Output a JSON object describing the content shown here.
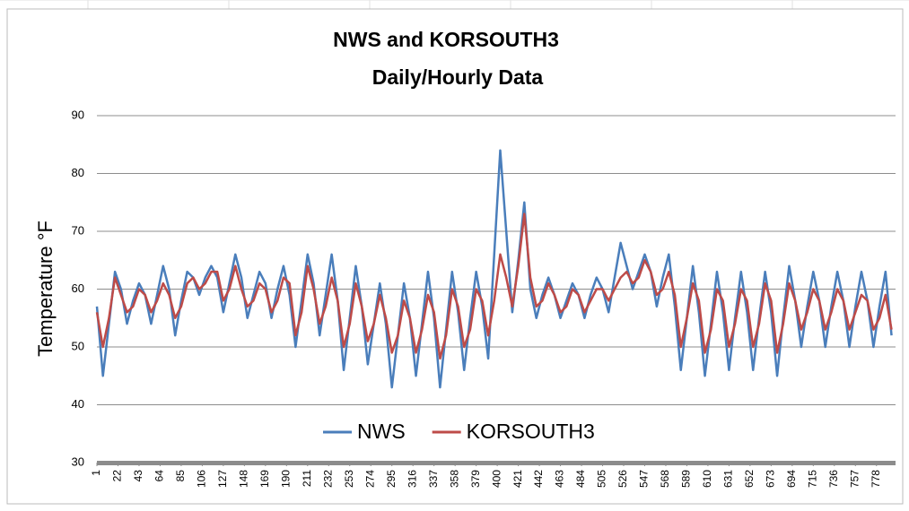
{
  "chart_data": {
    "type": "line",
    "title": "NWS and KORSOUTH3",
    "subtitle": "Daily/Hourly  Data",
    "y_label": "Temperature °F",
    "ylim": [
      30,
      90
    ],
    "yticks": [
      30,
      40,
      50,
      60,
      70,
      80,
      90
    ],
    "xlim": [
      1,
      797
    ],
    "xticks": [
      1,
      22,
      43,
      64,
      85,
      106,
      127,
      148,
      169,
      190,
      211,
      232,
      253,
      274,
      295,
      316,
      337,
      358,
      379,
      400,
      421,
      442,
      463,
      484,
      505,
      526,
      547,
      568,
      589,
      610,
      631,
      652,
      673,
      694,
      715,
      736,
      757,
      778
    ],
    "grid": true,
    "legend": "bottom",
    "x": [
      1,
      7,
      13,
      19,
      25,
      31,
      37,
      43,
      49,
      55,
      61,
      67,
      73,
      79,
      85,
      91,
      97,
      103,
      109,
      115,
      121,
      127,
      133,
      139,
      145,
      151,
      157,
      163,
      169,
      175,
      181,
      187,
      193,
      199,
      205,
      211,
      217,
      223,
      229,
      235,
      241,
      247,
      253,
      259,
      265,
      271,
      277,
      283,
      289,
      295,
      301,
      307,
      313,
      319,
      325,
      331,
      337,
      343,
      349,
      355,
      361,
      367,
      373,
      379,
      385,
      391,
      397,
      403,
      409,
      415,
      421,
      427,
      433,
      439,
      445,
      451,
      457,
      463,
      469,
      475,
      481,
      487,
      493,
      499,
      505,
      511,
      517,
      523,
      529,
      535,
      541,
      547,
      553,
      559,
      565,
      571,
      577,
      583,
      589,
      595,
      601,
      607,
      613,
      619,
      625,
      631,
      637,
      643,
      649,
      655,
      661,
      667,
      673,
      679,
      685,
      691,
      697,
      703,
      709,
      715,
      721,
      727,
      733,
      739,
      745,
      751,
      757,
      763,
      769,
      775,
      781,
      787,
      793
    ],
    "series": [
      {
        "name": "NWS",
        "color": "#4a7ebb",
        "values": [
          57,
          45,
          54,
          63,
          60,
          54,
          58,
          61,
          59,
          54,
          59,
          64,
          60,
          52,
          58,
          63,
          62,
          59,
          62,
          64,
          62,
          56,
          61,
          66,
          62,
          55,
          59,
          63,
          61,
          55,
          60,
          64,
          59,
          50,
          58,
          66,
          61,
          52,
          59,
          66,
          58,
          46,
          55,
          64,
          57,
          47,
          54,
          61,
          54,
          43,
          52,
          61,
          55,
          45,
          54,
          63,
          55,
          43,
          53,
          63,
          56,
          46,
          55,
          63,
          57,
          48,
          66,
          84,
          70,
          56,
          65,
          75,
          60,
          55,
          59,
          62,
          59,
          55,
          58,
          61,
          59,
          55,
          59,
          62,
          60,
          56,
          62,
          68,
          64,
          60,
          63,
          66,
          63,
          57,
          62,
          66,
          57,
          46,
          55,
          64,
          56,
          45,
          54,
          63,
          56,
          46,
          55,
          63,
          56,
          46,
          55,
          63,
          56,
          45,
          55,
          64,
          58,
          50,
          57,
          63,
          58,
          50,
          57,
          63,
          58,
          50,
          57,
          63,
          58,
          50,
          57,
          63,
          52
        ]
      },
      {
        "name": "KORSOUTH3",
        "color": "#be4b48",
        "values": [
          56,
          50,
          55,
          62,
          59,
          56,
          57,
          60,
          59,
          56,
          58,
          61,
          59,
          55,
          57,
          61,
          62,
          60,
          61,
          63,
          63,
          58,
          60,
          64,
          60,
          57,
          58,
          61,
          60,
          56,
          58,
          62,
          61,
          52,
          56,
          64,
          60,
          54,
          57,
          62,
          58,
          50,
          54,
          61,
          57,
          51,
          54,
          59,
          55,
          49,
          52,
          58,
          55,
          49,
          53,
          59,
          56,
          48,
          52,
          60,
          57,
          50,
          53,
          60,
          58,
          52,
          58,
          66,
          62,
          57,
          64,
          73,
          62,
          57,
          58,
          61,
          59,
          56,
          57,
          60,
          59,
          56,
          58,
          60,
          60,
          58,
          60,
          62,
          63,
          61,
          62,
          65,
          63,
          59,
          60,
          63,
          59,
          50,
          55,
          61,
          58,
          49,
          53,
          60,
          58,
          50,
          54,
          60,
          58,
          50,
          54,
          61,
          58,
          49,
          54,
          61,
          58,
          53,
          56,
          60,
          58,
          53,
          56,
          60,
          58,
          53,
          56,
          59,
          58,
          53,
          55,
          59,
          53
        ]
      }
    ]
  }
}
